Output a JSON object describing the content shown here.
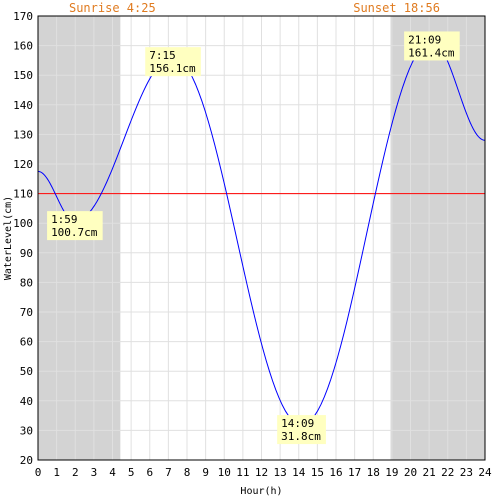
{
  "chart_data": {
    "type": "line",
    "xlabel": "Hour(h)",
    "ylabel": "WaterLevel(cm)",
    "xlim": [
      0,
      24
    ],
    "ylim": [
      20,
      170
    ],
    "x_ticks": [
      0,
      1,
      2,
      3,
      4,
      5,
      6,
      7,
      8,
      9,
      10,
      11,
      12,
      13,
      14,
      15,
      16,
      17,
      18,
      19,
      20,
      21,
      22,
      23,
      24
    ],
    "y_ticks": [
      20,
      30,
      40,
      50,
      60,
      70,
      80,
      90,
      100,
      110,
      120,
      130,
      140,
      150,
      160,
      170
    ],
    "grid": true,
    "sunrise": {
      "label": "Sunrise 4:25",
      "hour": 4.42
    },
    "sunset": {
      "label": "Sunset 18:56",
      "hour": 18.93
    },
    "reference_line": {
      "value": 110,
      "color": "#ff0000"
    },
    "series": [
      {
        "color": "#0000ff",
        "points": [
          [
            0,
            117.5
          ],
          [
            1.98,
            100.7
          ],
          [
            7.25,
            156.1
          ],
          [
            14.15,
            31.8
          ],
          [
            21.15,
            161.4
          ],
          [
            24,
            128
          ]
        ]
      }
    ],
    "annotations": [
      {
        "time": "1:59",
        "value": "100.7cm",
        "x": 1.98,
        "y": 100.7
      },
      {
        "time": "7:15",
        "value": "156.1cm",
        "x": 7.25,
        "y": 156.1
      },
      {
        "time": "14:09",
        "value": "31.8cm",
        "x": 14.15,
        "y": 31.8
      },
      {
        "time": "21:09",
        "value": "161.4cm",
        "x": 21.15,
        "y": 161.4
      }
    ],
    "colors": {
      "night_shade": "#d3d3d3",
      "grid": "#e0e0e0",
      "annotation_bg": "#ffffc0",
      "sun_label": "#e07b20"
    }
  }
}
